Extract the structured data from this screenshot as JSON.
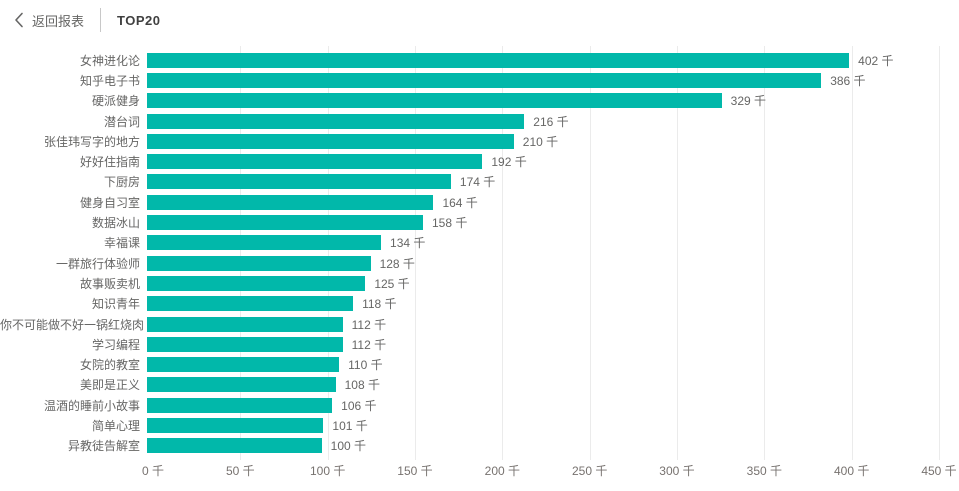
{
  "header": {
    "back_label": "返回报表",
    "tab_label": "TOP20"
  },
  "chart_data": {
    "type": "bar",
    "orientation": "horizontal",
    "title": "TOP20",
    "unit": "千",
    "categories": [
      "女神进化论",
      "知乎电子书",
      "硬派健身",
      "潜台词",
      "张佳玮写字的地方",
      "好好住指南",
      "下厨房",
      "健身自习室",
      "数据冰山",
      "幸福课",
      "一群旅行体验师",
      "故事贩卖机",
      "知识青年",
      "你不可能做不好一锅红烧肉",
      "学习编程",
      "女院的教室",
      "美即是正义",
      "温酒的睡前小故事",
      "简单心理",
      "异教徒告解室"
    ],
    "values": [
      402,
      386,
      329,
      216,
      210,
      192,
      174,
      164,
      158,
      134,
      128,
      125,
      118,
      112,
      112,
      110,
      108,
      106,
      101,
      100
    ],
    "value_labels": [
      "402 千",
      "386 千",
      "329 千",
      "216 千",
      "210 千",
      "192 千",
      "174 千",
      "164 千",
      "158 千",
      "134 千",
      "128 千",
      "125 千",
      "118 千",
      "112 千",
      "112 千",
      "110 千",
      "108 千",
      "106 千",
      "101 千",
      "100 千"
    ],
    "xlim": [
      0,
      450
    ],
    "xticks": [
      0,
      50,
      100,
      150,
      200,
      250,
      300,
      350,
      400,
      450
    ],
    "xtick_labels": [
      "0 千",
      "50 千",
      "100 千",
      "150 千",
      "200 千",
      "250 千",
      "300 千",
      "350 千",
      "400 千",
      "450 千"
    ],
    "bar_color": "#01B8AA",
    "grid": true,
    "legend": false
  }
}
